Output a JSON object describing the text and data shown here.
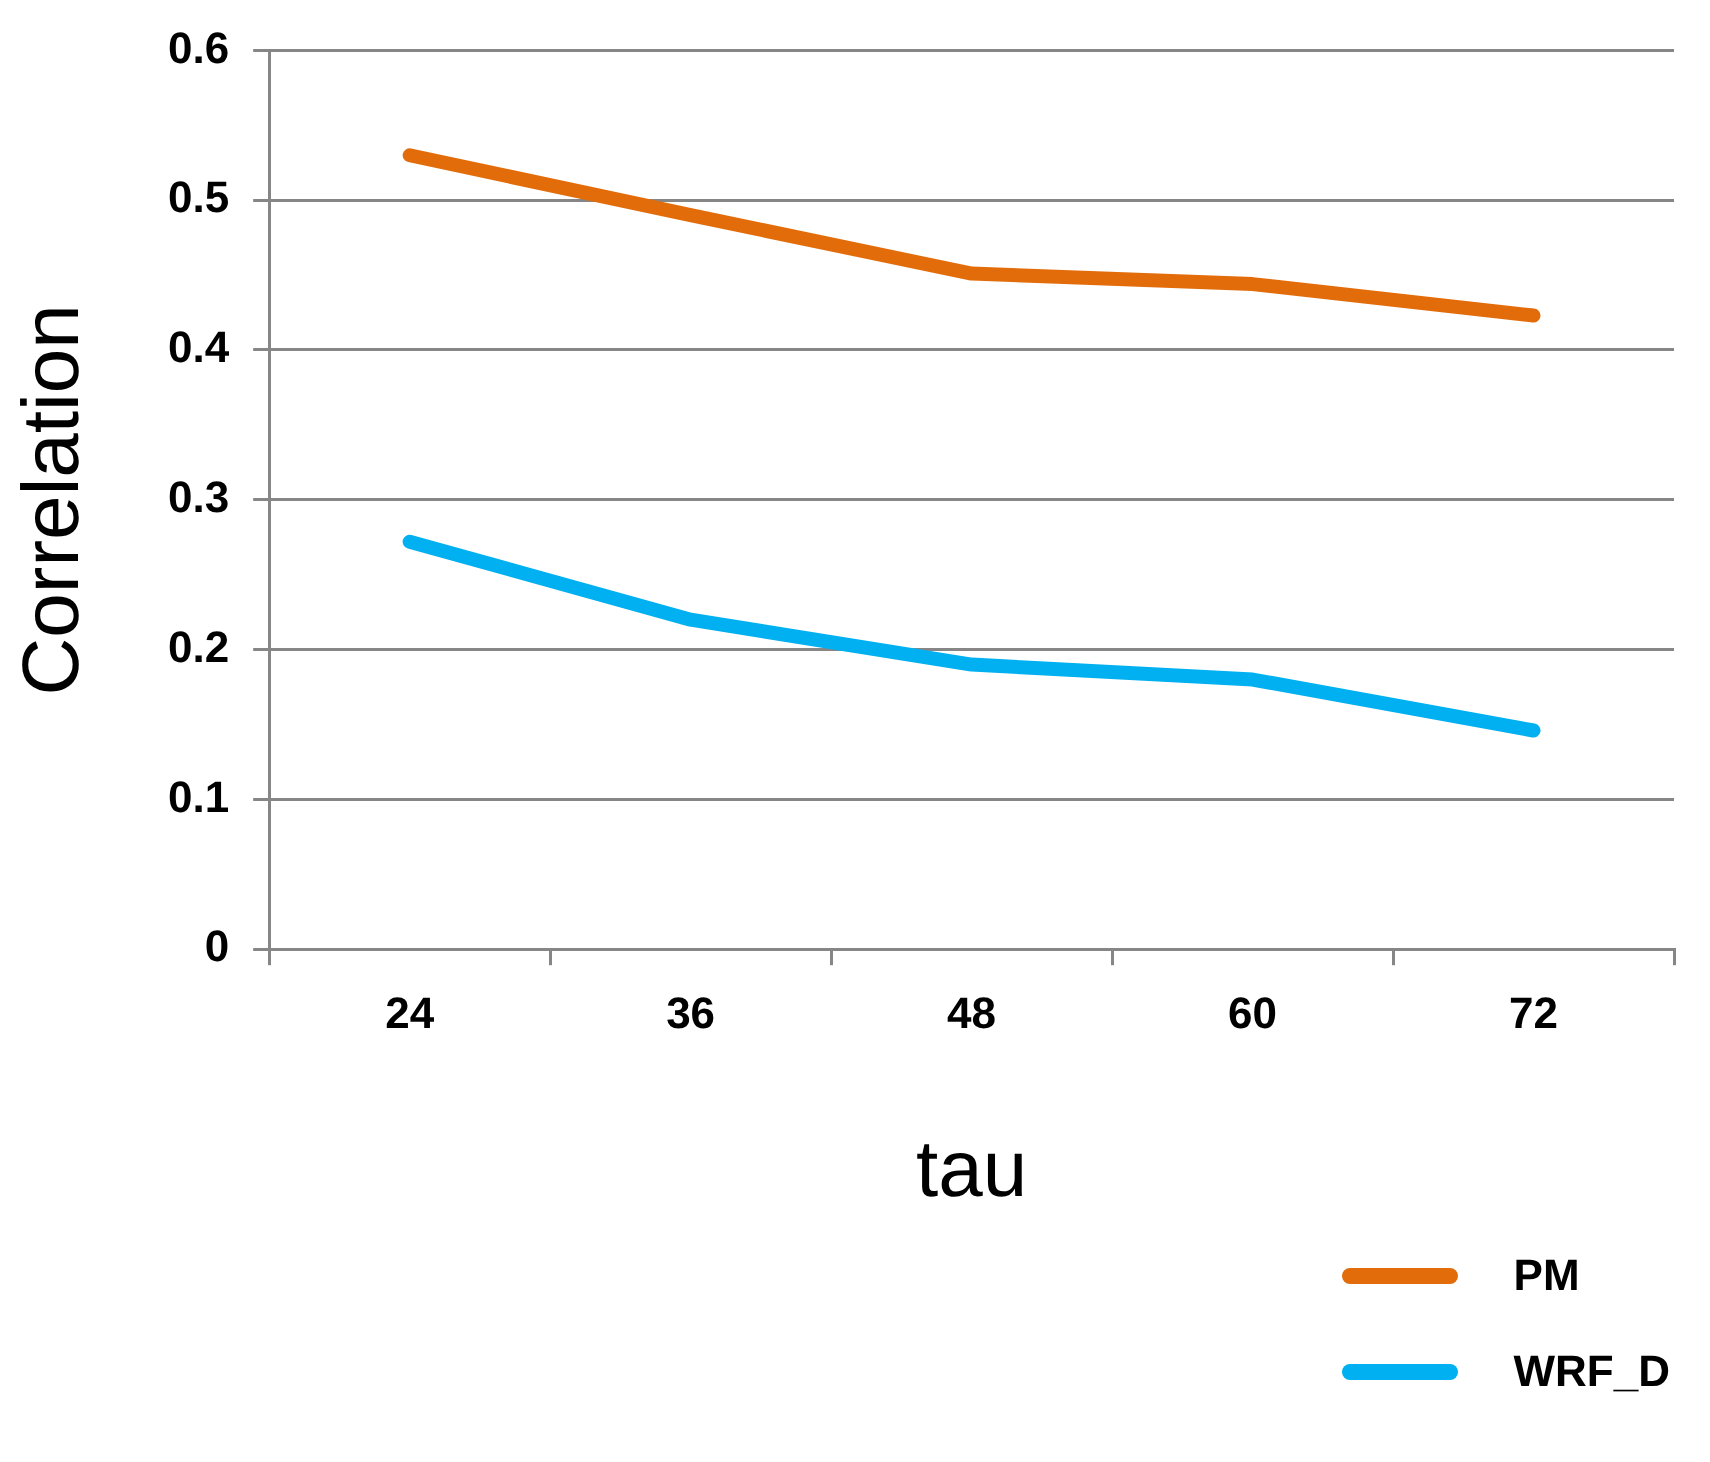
{
  "chart_data": {
    "type": "line",
    "xlabel": "tau",
    "ylabel": "Correlation",
    "categories": [
      "24",
      "36",
      "48",
      "60",
      "72"
    ],
    "series": [
      {
        "name": "PM",
        "color": "#e36c0a",
        "values": [
          0.53,
          0.49,
          0.451,
          0.444,
          0.423
        ]
      },
      {
        "name": "WRF_D",
        "color": "#00b0f0",
        "values": [
          0.272,
          0.22,
          0.19,
          0.18,
          0.146
        ]
      }
    ],
    "ylim": [
      0,
      0.6
    ],
    "yticks": [
      0,
      0.1,
      0.2,
      0.3,
      0.4,
      0.5,
      0.6
    ],
    "grid": "y",
    "legend": "bottom right",
    "marker": "none",
    "line_style": "solid"
  }
}
